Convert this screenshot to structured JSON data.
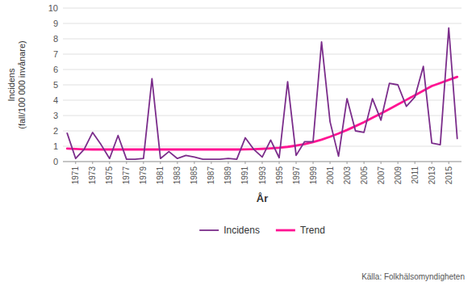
{
  "chart_data": {
    "type": "line",
    "x_label": "År",
    "y_label": "Incidens\n(fall/100 000 invånare)",
    "source": "Källa:  Folkhälsomyndigheten",
    "x": [
      1970,
      1971,
      1972,
      1973,
      1974,
      1975,
      1976,
      1977,
      1978,
      1979,
      1980,
      1981,
      1982,
      1983,
      1984,
      1985,
      1986,
      1987,
      1988,
      1989,
      1990,
      1991,
      1992,
      1993,
      1994,
      1995,
      1996,
      1997,
      1998,
      1999,
      2000,
      2001,
      2002,
      2003,
      2004,
      2005,
      2006,
      2007,
      2008,
      2009,
      2010,
      2011,
      2012,
      2013,
      2014,
      2015,
      2016
    ],
    "series": [
      {
        "name": "Incidens",
        "color": "#7B2D8B",
        "values": [
          1.85,
          0.2,
          0.8,
          1.9,
          1.1,
          0.2,
          1.7,
          0.15,
          0.15,
          0.2,
          5.4,
          0.2,
          0.65,
          0.2,
          0.4,
          0.3,
          0.15,
          0.15,
          0.15,
          0.2,
          0.15,
          1.55,
          0.8,
          0.3,
          1.4,
          0.25,
          5.2,
          0.4,
          1.3,
          1.3,
          7.8,
          2.6,
          0.35,
          4.1,
          2.0,
          1.9,
          4.1,
          2.7,
          5.1,
          5.0,
          3.6,
          4.2,
          6.2,
          1.2,
          1.1,
          8.7,
          1.5
        ]
      },
      {
        "name": "Trend",
        "color": "#FF1493",
        "values": [
          0.85,
          0.82,
          0.8,
          0.79,
          0.79,
          0.79,
          0.79,
          0.79,
          0.79,
          0.79,
          0.79,
          0.79,
          0.79,
          0.79,
          0.79,
          0.79,
          0.79,
          0.79,
          0.79,
          0.79,
          0.79,
          0.8,
          0.81,
          0.83,
          0.86,
          0.9,
          0.96,
          1.04,
          1.14,
          1.27,
          1.43,
          1.62,
          1.83,
          2.06,
          2.31,
          2.57,
          2.85,
          3.13,
          3.42,
          3.72,
          4.02,
          4.32,
          4.62,
          4.92,
          5.12,
          5.32,
          5.52
        ]
      }
    ],
    "xlim": [
      1969.5,
      2016.5
    ],
    "xticks": [
      1971,
      1973,
      1975,
      1977,
      1979,
      1981,
      1983,
      1985,
      1987,
      1989,
      1991,
      1993,
      1995,
      1997,
      1999,
      2001,
      2003,
      2005,
      2007,
      2009,
      2011,
      2013,
      2015
    ],
    "ylim": [
      0,
      10
    ],
    "yticks": [
      0,
      1,
      2,
      3,
      4,
      5,
      6,
      7,
      8,
      9,
      10
    ],
    "grid": true,
    "legend": "bottom"
  }
}
